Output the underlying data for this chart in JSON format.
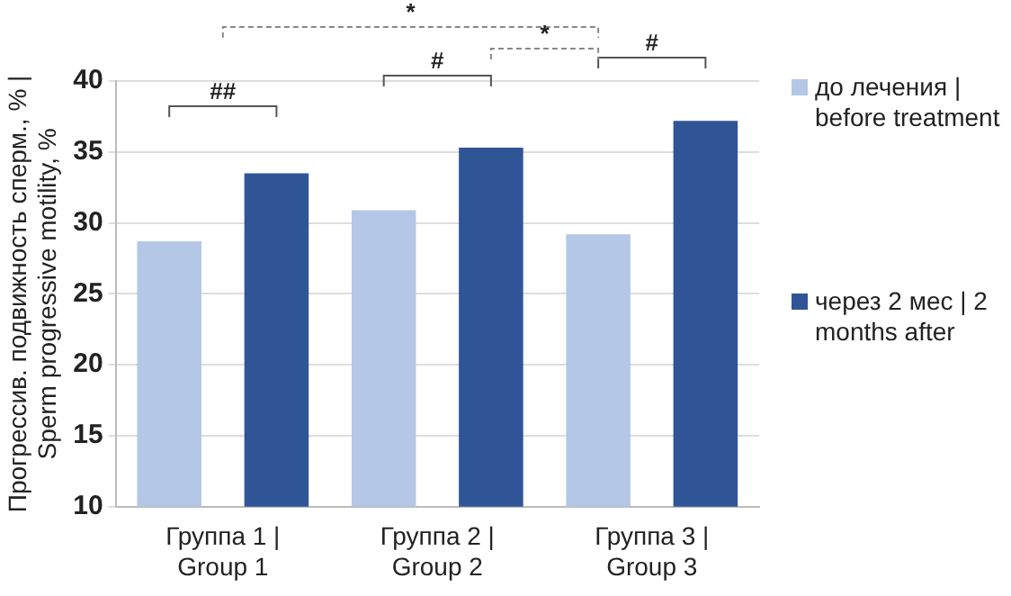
{
  "chart_data": {
    "type": "bar",
    "ylabel": "Прогрессив. подвижность сперм., % | Sperm progressive motility, %",
    "categories": [
      "Группа 1 | Group 1",
      "Группа 2 | Group 2",
      "Группа 3 | Group 3"
    ],
    "series": [
      {
        "name": "до лечения | before treatment",
        "color": "#b4c7e7",
        "values": [
          28.7,
          30.9,
          29.2
        ]
      },
      {
        "name": "через 2 мес | 2 months after",
        "color": "#2f5597",
        "values": [
          33.5,
          35.3,
          37.2
        ]
      }
    ],
    "ylim": [
      10,
      40
    ],
    "yticks": [
      10,
      15,
      20,
      25,
      30,
      35,
      40
    ],
    "grid": "y",
    "legend": "right",
    "annotations": [
      "##",
      "#",
      "#",
      "*",
      "*"
    ]
  }
}
